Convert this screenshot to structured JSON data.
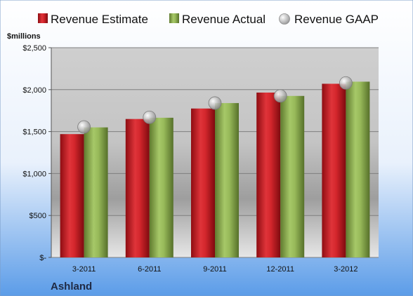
{
  "legend": {
    "estimate": "Revenue Estimate",
    "actual": "Revenue Actual",
    "gaap": "Revenue GAAP"
  },
  "unit_label": "$millions",
  "company": "Ashland",
  "colors": {
    "estimate": "#c0171f",
    "actual": "#8fb050",
    "gaap": "#b4b4b4",
    "background_top": "#ffffff",
    "background_bottom": "#5b9ce8"
  },
  "chart_data": {
    "type": "bar",
    "categories": [
      "3-2011",
      "6-2011",
      "9-2011",
      "12-2011",
      "3-2012"
    ],
    "series": [
      {
        "name": "Revenue Estimate",
        "values": [
          1470,
          1650,
          1775,
          1965,
          2070
        ]
      },
      {
        "name": "Revenue Actual",
        "values": [
          1550,
          1665,
          1840,
          1925,
          2095
        ]
      },
      {
        "name": "Revenue GAAP",
        "values": [
          1555,
          1670,
          1840,
          1925,
          2080
        ]
      }
    ],
    "ylabel": "$millions",
    "ylim": [
      0,
      2500
    ],
    "yticks": [
      0,
      500,
      1000,
      1500,
      2000,
      2500
    ],
    "ytick_labels": [
      "$-",
      "$500",
      "$1,000",
      "$1,500",
      "$2,000",
      "$2,500"
    ],
    "grid": true,
    "legend_position": "top"
  }
}
